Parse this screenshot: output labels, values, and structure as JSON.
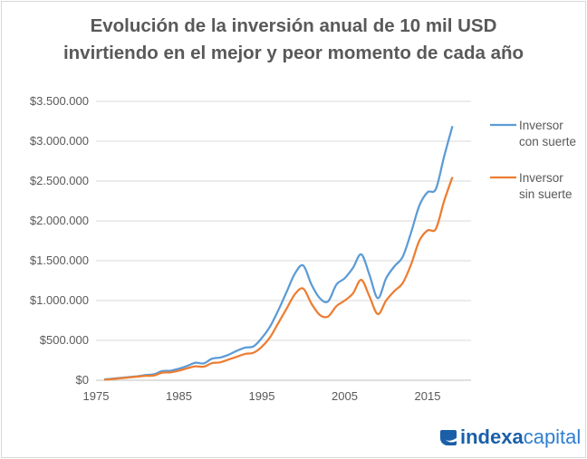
{
  "chart_data": {
    "type": "line",
    "title": "Evolución de la inversión anual de 10 mil USD invirtiendo en el mejor y peor momento de cada año",
    "title_lines": [
      "Evolución de la inversión anual de 10 mil USD",
      "invirtiendo en el mejor y peor momento de cada año"
    ],
    "x": [
      1976,
      1977,
      1978,
      1979,
      1980,
      1981,
      1982,
      1983,
      1984,
      1985,
      1986,
      1987,
      1988,
      1989,
      1990,
      1991,
      1992,
      1993,
      1994,
      1995,
      1996,
      1997,
      1998,
      1999,
      2000,
      2001,
      2002,
      2003,
      2004,
      2005,
      2006,
      2007,
      2008,
      2009,
      2010,
      2011,
      2012,
      2013,
      2014,
      2015,
      2016,
      2017,
      2018
    ],
    "series": [
      {
        "name": "Inversor con suerte",
        "name_lines": [
          "Inversor",
          "con suerte"
        ],
        "color": "#5b9bd5",
        "values": [
          10000,
          20000,
          30000,
          40000,
          50000,
          65000,
          75000,
          115000,
          120000,
          145000,
          180000,
          220000,
          212000,
          270000,
          285000,
          320000,
          370000,
          410000,
          425000,
          530000,
          675000,
          880000,
          1110000,
          1340000,
          1440000,
          1200000,
          1030000,
          990000,
          1200000,
          1280000,
          1410000,
          1580000,
          1320000,
          1030000,
          1280000,
          1430000,
          1550000,
          1850000,
          2190000,
          2360000,
          2400000,
          2810000,
          3190000
        ]
      },
      {
        "name": "Inversor sin suerte",
        "name_lines": [
          "Inversor",
          "sin suerte"
        ],
        "color": "#ed7d31",
        "values": [
          5000,
          15000,
          25000,
          35000,
          45000,
          55000,
          60000,
          95000,
          100000,
          120000,
          150000,
          175000,
          170000,
          215000,
          225000,
          260000,
          295000,
          330000,
          345000,
          420000,
          540000,
          720000,
          900000,
          1080000,
          1150000,
          960000,
          820000,
          800000,
          930000,
          1000000,
          1090000,
          1260000,
          1050000,
          830000,
          1000000,
          1120000,
          1220000,
          1450000,
          1750000,
          1880000,
          1900000,
          2250000,
          2550000
        ]
      }
    ],
    "xlim": [
      1975,
      2020
    ],
    "ylim": [
      0,
      3500000
    ],
    "x_ticks": [
      "1975",
      "1985",
      "1995",
      "2005",
      "2015"
    ],
    "x_tick_values": [
      1975,
      1985,
      1995,
      2005,
      2015
    ],
    "y_ticks": [
      "$0",
      "$500.000",
      "$1.000.000",
      "$1.500.000",
      "$2.000.000",
      "$2.500.000",
      "$3.000.000",
      "$3.500.000"
    ],
    "y_tick_values": [
      0,
      500000,
      1000000,
      1500000,
      2000000,
      2500000,
      3000000,
      3500000
    ],
    "grid": "horizontal",
    "legend": "right"
  },
  "logo": {
    "bold": "indexa",
    "light": "capital"
  }
}
